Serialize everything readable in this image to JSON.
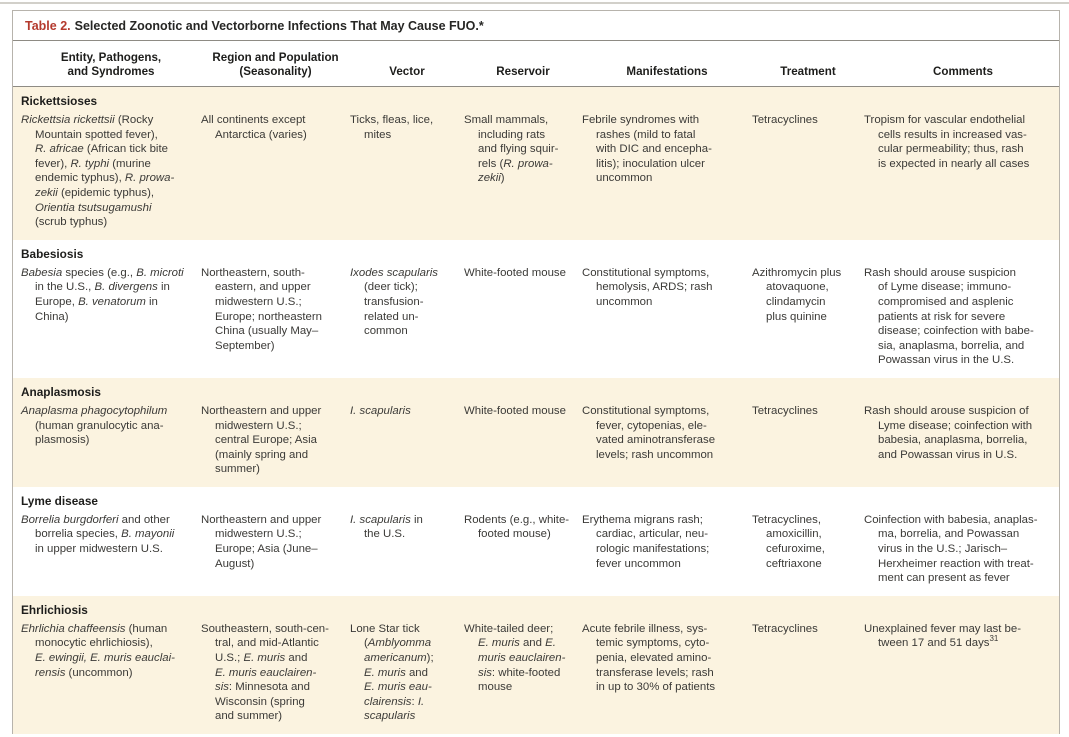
{
  "title": {
    "label": "Table 2.",
    "text": "Selected Zoonotic and Vectorborne Infections That May Cause FUO.*"
  },
  "columns": [
    "Entity, Pathogens,\nand Syndromes",
    "Region and Population\n(Seasonality)",
    "Vector",
    "Reservoir",
    "Manifestations",
    "Treatment",
    "Comments"
  ],
  "sections": [
    {
      "name": "Rickettsioses",
      "rows": [
        {
          "entity": [
            {
              "i": true,
              "t": "Rickettsia rickettsii"
            },
            {
              "t": " (Rocky\nMountain spotted fever),\n"
            },
            {
              "i": true,
              "t": "R. africae"
            },
            {
              "t": " (African tick bite\nfever), "
            },
            {
              "i": true,
              "t": "R. typhi"
            },
            {
              "t": " (murine\nendemic typhus), "
            },
            {
              "i": true,
              "t": "R. prowa-\nzekii"
            },
            {
              "t": " (epidemic typhus),\n"
            },
            {
              "i": true,
              "t": "Orientia tsutsugamushi"
            },
            {
              "t": "\n(scrub typhus)"
            }
          ],
          "region": [
            {
              "t": "All continents except\nAntarctica (varies)"
            }
          ],
          "vector": [
            {
              "t": "Ticks, fleas, lice,\nmites"
            }
          ],
          "reservoir": [
            {
              "t": "Small mammals,\nincluding rats\nand flying squir-\nrels ("
            },
            {
              "i": true,
              "t": "R. prowa-\nzekii"
            },
            {
              "t": ")"
            }
          ],
          "manifestations": [
            {
              "t": "Febrile syndromes with\nrashes (mild to fatal\nwith DIC and encepha-\nlitis); inoculation ulcer\nuncommon"
            }
          ],
          "treatment": [
            {
              "t": "Tetracyclines"
            }
          ],
          "comments": [
            {
              "t": "Tropism for vascular endothelial\ncells results in increased vas-\ncular permeability; thus, rash\nis expected in nearly all cases"
            }
          ]
        }
      ]
    },
    {
      "name": "Babesiosis",
      "rows": [
        {
          "entity": [
            {
              "i": true,
              "t": "Babesia"
            },
            {
              "t": " species (e.g., "
            },
            {
              "i": true,
              "t": "B. microti"
            },
            {
              "t": "\nin the U.S., "
            },
            {
              "i": true,
              "t": "B. divergens"
            },
            {
              "t": " in\nEurope, "
            },
            {
              "i": true,
              "t": "B. venatorum"
            },
            {
              "t": " in\nChina)"
            }
          ],
          "region": [
            {
              "t": "Northeastern, south-\neastern, and upper\nmidwestern U.S.;\nEurope; northeastern\nChina (usually May–\nSeptember)"
            }
          ],
          "vector": [
            {
              "i": true,
              "t": "Ixodes scapularis"
            },
            {
              "t": "\n(deer tick);\ntransfusion-\nrelated un-\ncommon"
            }
          ],
          "reservoir": [
            {
              "t": "White-footed mouse"
            }
          ],
          "manifestations": [
            {
              "t": "Constitutional symptoms,\nhemolysis, ARDS; rash\nuncommon"
            }
          ],
          "treatment": [
            {
              "t": "Azithromycin plus\natovaquone,\nclindamycin\nplus quinine"
            }
          ],
          "comments": [
            {
              "t": "Rash should arouse suspicion\nof Lyme disease; immuno-\ncompromised and asplenic\npatients at risk for severe\ndisease; coinfection with babe-\nsia, anaplasma, borrelia, and\nPowassan virus in the U.S."
            }
          ]
        }
      ]
    },
    {
      "name": "Anaplasmosis",
      "rows": [
        {
          "entity": [
            {
              "i": true,
              "t": "Anaplasma phagocytophilum"
            },
            {
              "t": "\n(human granulocytic ana-\nplasmosis)"
            }
          ],
          "region": [
            {
              "t": "Northeastern and upper\nmidwestern U.S.;\ncentral Europe; Asia\n(mainly spring and\nsummer)"
            }
          ],
          "vector": [
            {
              "i": true,
              "t": "I. scapularis"
            }
          ],
          "reservoir": [
            {
              "t": "White-footed mouse"
            }
          ],
          "manifestations": [
            {
              "t": "Constitutional symptoms,\nfever, cytopenias, ele-\nvated aminotransferase\nlevels; rash uncommon"
            }
          ],
          "treatment": [
            {
              "t": "Tetracyclines"
            }
          ],
          "comments": [
            {
              "t": "Rash should arouse suspicion of\nLyme disease; coinfection with\nbabesia, anaplasma, borrelia,\nand Powassan virus in U.S."
            }
          ]
        }
      ]
    },
    {
      "name": "Lyme disease",
      "rows": [
        {
          "entity": [
            {
              "i": true,
              "t": "Borrelia burgdorferi"
            },
            {
              "t": " and other\nborrelia species, "
            },
            {
              "i": true,
              "t": "B. mayonii"
            },
            {
              "t": "\nin upper midwestern U.S."
            }
          ],
          "region": [
            {
              "t": "Northeastern and upper\nmidwestern U.S.;\nEurope; Asia (June–\nAugust)"
            }
          ],
          "vector": [
            {
              "i": true,
              "t": "I. scapularis"
            },
            {
              "t": " in\nthe U.S."
            }
          ],
          "reservoir": [
            {
              "t": "Rodents (e.g., white-\nfooted mouse)"
            }
          ],
          "manifestations": [
            {
              "t": "Erythema migrans rash;\ncardiac, articular, neu-\nrologic manifestations;\nfever uncommon"
            }
          ],
          "treatment": [
            {
              "t": "Tetracyclines,\namoxicillin,\ncefuroxime,\nceftriaxone"
            }
          ],
          "comments": [
            {
              "t": "Coinfection with babesia, anaplas-\nma, borrelia, and Powassan\nvirus in the U.S.; Jarisch–\nHerxheimer reaction with treat-\nment can present as fever"
            }
          ]
        }
      ]
    },
    {
      "name": "Ehrlichiosis",
      "rows": [
        {
          "entity": [
            {
              "i": true,
              "t": "Ehrlichia chaffeensis"
            },
            {
              "t": " (human\nmonocytic ehrlichiosis),\n"
            },
            {
              "i": true,
              "t": "E. ewingii, E. muris eauclai-\nrensis"
            },
            {
              "t": " (uncommon)"
            }
          ],
          "region": [
            {
              "t": "Southeastern, south-cen-\ntral, and mid-Atlantic\nU.S.; "
            },
            {
              "i": true,
              "t": "E. muris"
            },
            {
              "t": " and\n"
            },
            {
              "i": true,
              "t": "E. muris eauclairen-\nsis"
            },
            {
              "t": ": Minnesota and\nWisconsin (spring\nand summer)"
            }
          ],
          "vector": [
            {
              "t": "Lone Star tick\n("
            },
            {
              "i": true,
              "t": "Amblyomma\namericanum"
            },
            {
              "t": ");\n"
            },
            {
              "i": true,
              "t": "E. muris"
            },
            {
              "t": " and\n"
            },
            {
              "i": true,
              "t": "E. muris eau-\nclairensis"
            },
            {
              "t": ": "
            },
            {
              "i": true,
              "t": "I.\nscapularis"
            }
          ],
          "reservoir": [
            {
              "t": "White-tailed deer;\n"
            },
            {
              "i": true,
              "t": "E. muris"
            },
            {
              "t": " and "
            },
            {
              "i": true,
              "t": "E.\nmuris eauclairen-\nsis"
            },
            {
              "t": ": white-footed\nmouse"
            }
          ],
          "manifestations": [
            {
              "t": "Acute febrile illness, sys-\ntemic symptoms, cyto-\npenia, elevated amino-\ntransferase levels; rash\nin up to 30% of patients"
            }
          ],
          "treatment": [
            {
              "t": "Tetracyclines"
            }
          ],
          "comments": [
            {
              "t": "Unexplained fever may last be-\ntween 17 and 51 days"
            },
            {
              "sup": true,
              "t": "31"
            }
          ]
        }
      ]
    }
  ]
}
